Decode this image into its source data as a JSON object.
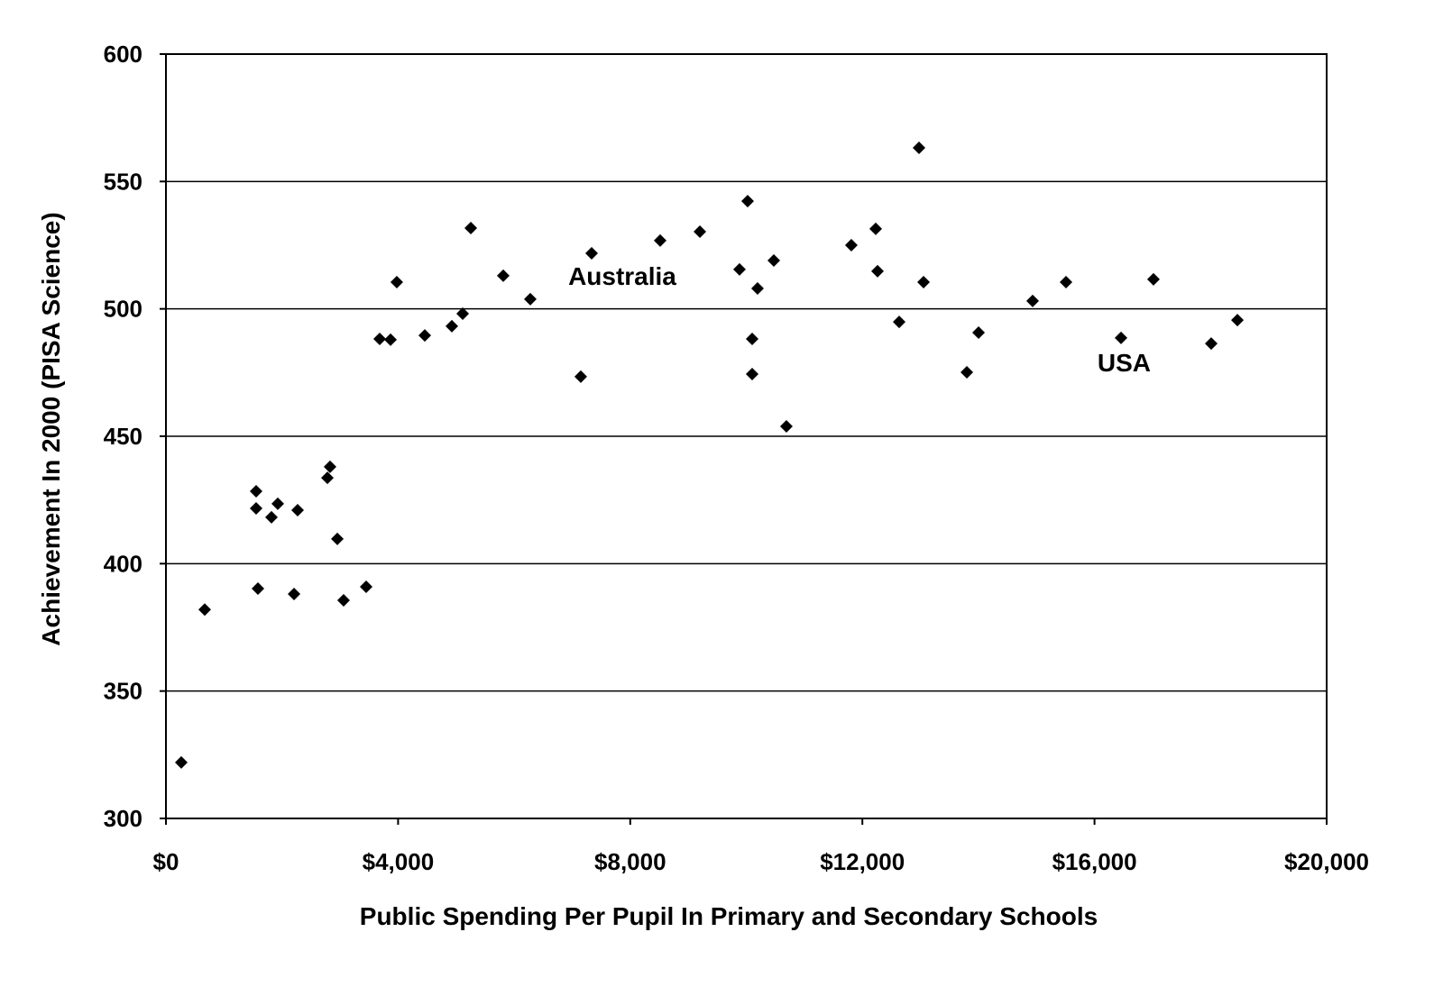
{
  "chart_data": {
    "type": "scatter",
    "title": "",
    "xlabel": "Public Spending Per Pupil In Primary and Secondary Schools",
    "ylabel": "Achievement In 2000 (PISA Science)",
    "xlim": [
      0,
      20000
    ],
    "ylim": [
      300,
      600
    ],
    "x_ticks": [
      0,
      4000,
      8000,
      12000,
      16000,
      20000
    ],
    "x_tick_labels": [
      "$0",
      "$4,000",
      "$8,000",
      "$12,000",
      "$16,000",
      "$20,000"
    ],
    "y_ticks": [
      300,
      350,
      400,
      450,
      500,
      550,
      600
    ],
    "y_tick_labels": [
      "300",
      "350",
      "400",
      "450",
      "500",
      "550",
      "600"
    ],
    "grid": "horizontal",
    "marker": "diamond",
    "marker_color": "#000000",
    "points": [
      [
        264,
        322
      ],
      [
        668,
        382
      ],
      [
        1554,
        428.4
      ],
      [
        1554,
        421.7
      ],
      [
        1818,
        418.2
      ],
      [
        1927,
        423.5
      ],
      [
        2269,
        421
      ],
      [
        1585,
        390.2
      ],
      [
        2207,
        388.1
      ],
      [
        2828,
        438
      ],
      [
        2782,
        433.7
      ],
      [
        2953,
        409.7
      ],
      [
        3061,
        385.6
      ],
      [
        3450,
        390.9
      ],
      [
        3683,
        488.2
      ],
      [
        3870,
        487.9
      ],
      [
        3978,
        510.5
      ],
      [
        4460,
        489.6
      ],
      [
        4926,
        493.2
      ],
      [
        5113,
        498.1
      ],
      [
        5253,
        531.7
      ],
      [
        5812,
        513
      ],
      [
        6278,
        503.8
      ],
      [
        7148,
        473.4
      ],
      [
        7335,
        521.8
      ],
      [
        8516,
        526.8
      ],
      [
        9200,
        530.3
      ],
      [
        9883,
        515.5
      ],
      [
        10023,
        542.3
      ],
      [
        10194,
        508
      ],
      [
        10101,
        488.2
      ],
      [
        10101,
        474.4
      ],
      [
        10474,
        519
      ],
      [
        10691,
        453.9
      ],
      [
        11810,
        525
      ],
      [
        12230,
        531.4
      ],
      [
        12261,
        514.8
      ],
      [
        12634,
        494.9
      ],
      [
        12976,
        563.2
      ],
      [
        13054,
        510.5
      ],
      [
        13800,
        475.1
      ],
      [
        14002,
        490.7
      ],
      [
        14934,
        503.1
      ],
      [
        15509,
        510.5
      ],
      [
        16457,
        488.6
      ],
      [
        17016,
        511.6
      ],
      [
        18011,
        486.4
      ],
      [
        18462,
        495.6
      ]
    ],
    "annotations": [
      {
        "text": "Australia",
        "x": 7863,
        "y": 513
      },
      {
        "text": "USA",
        "x": 16510,
        "y": 479
      }
    ]
  }
}
